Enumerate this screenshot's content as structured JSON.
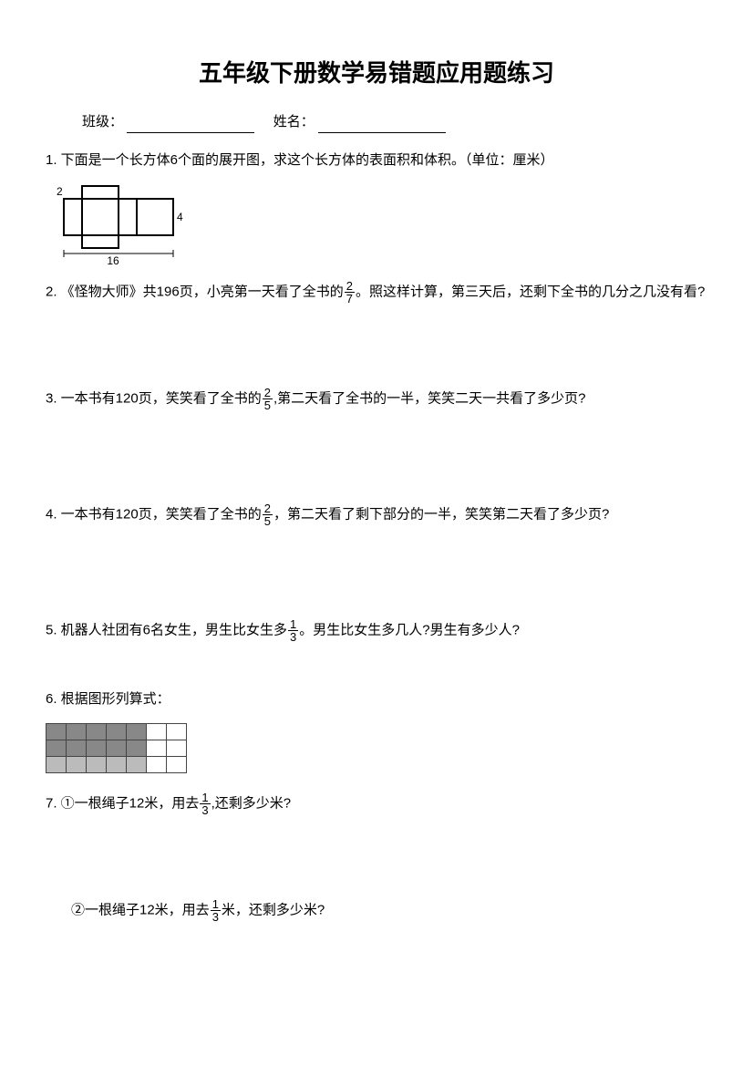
{
  "title": "五年级下册数学易错题应用题练习",
  "info": {
    "class_label": "班级：",
    "name_label": "姓名："
  },
  "q1": {
    "text": "1. 下面是一个长方体6个面的展开图，求这个长方体的表面积和体积。（单位：厘米）",
    "dim_h": "2",
    "dim_r": "4",
    "dim_w": "16"
  },
  "q2_a": "2. 《怪物大师》共196页，小亮第一天看了全书的",
  "q2_frac_n": "2",
  "q2_frac_d": "7",
  "q2_b": "。照这样计算，第三天后，还剩下全书的几分之几没有看?",
  "q3_a": "3. 一本书有120页，笑笑看了全书的",
  "q3_frac_n": "2",
  "q3_frac_d": "5",
  "q3_b": ",第二天看了全书的一半，笑笑二天一共看了多少页?",
  "q4_a": "4. 一本书有120页，笑笑看了全书的",
  "q4_frac_n": "2",
  "q4_frac_d": "5",
  "q4_b": "，第二天看了剩下部分的一半，笑笑第二天看了多少页?",
  "q5_a": "5. 机器人社团有6名女生，男生比女生多",
  "q5_frac_n": "1",
  "q5_frac_d": "3",
  "q5_b": "。男生比女生多几人?男生有多少人?",
  "q6": "6. 根据图形列算式：",
  "q7_a": "7. ①一根绳子12米，用去",
  "q7_frac_n": "1",
  "q7_frac_d": "3",
  "q7_b": ",还剩多少米?",
  "q7c_a": "②一根绳子12米，用去",
  "q7c_frac_n": "1",
  "q7c_frac_d": "3",
  "q7c_b": "米，还剩多少米?",
  "grid": {
    "rows": 3,
    "cols": 7,
    "pattern": [
      [
        "dark",
        "dark",
        "dark",
        "dark",
        "dark",
        "light",
        "light"
      ],
      [
        "dark",
        "dark",
        "dark",
        "dark",
        "dark",
        "light",
        "light"
      ],
      [
        "mid",
        "mid",
        "mid",
        "mid",
        "mid",
        "light",
        "light"
      ]
    ]
  }
}
